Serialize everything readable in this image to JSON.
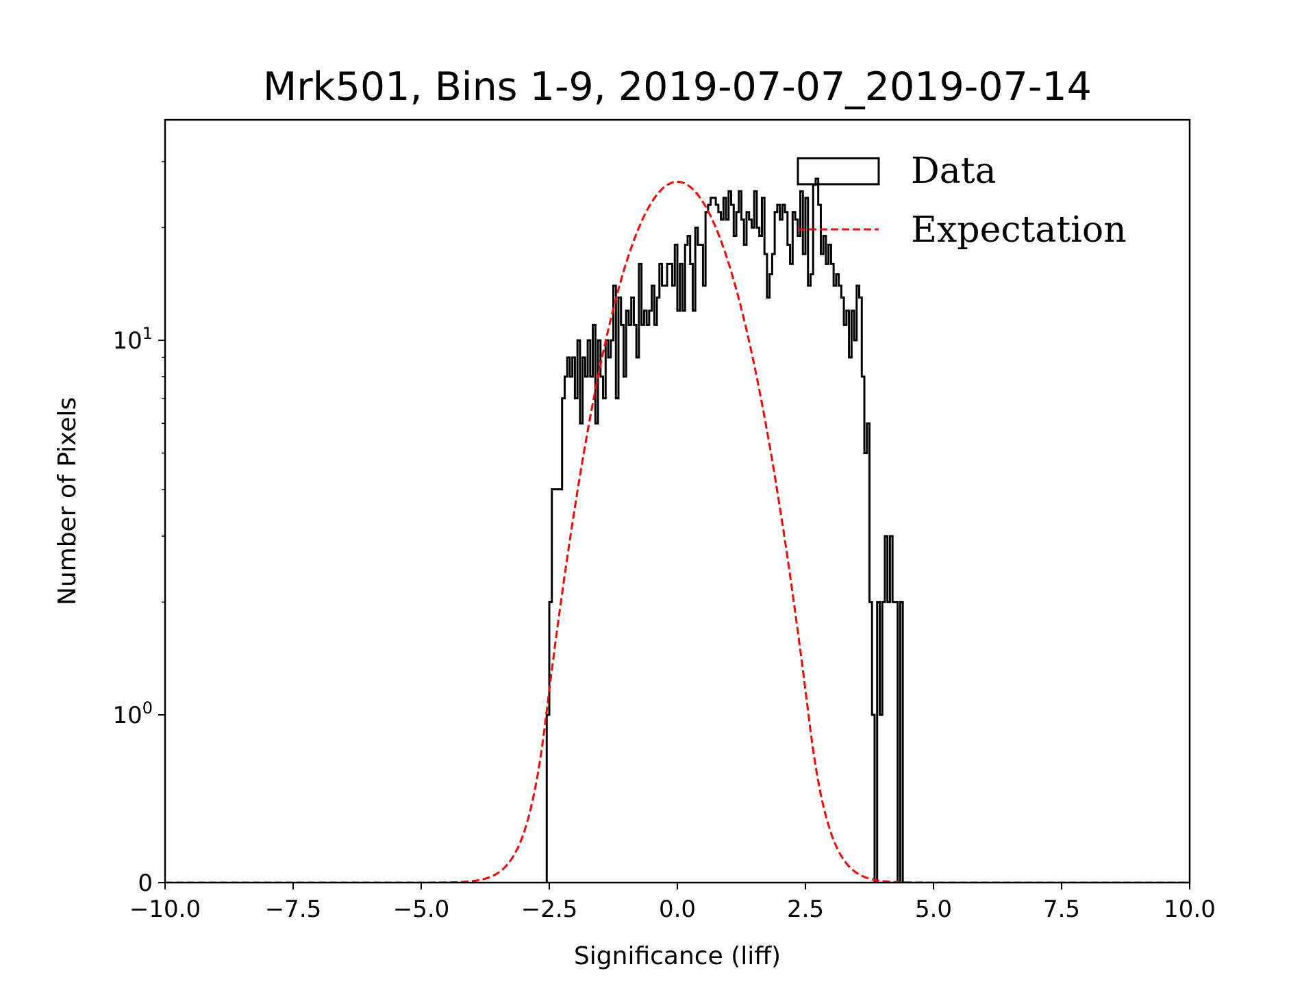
{
  "chart_data": {
    "type": "histogram",
    "title": "Mrk501, Bins 1-9, 2019-07-07_2019-07-14",
    "xlabel": "Significance (liff)",
    "ylabel": "Number of Pixels",
    "xlim": [
      -10.0,
      10.0
    ],
    "ylim": [
      0,
      38
    ],
    "yscale": "symlog",
    "grid": false,
    "x_ticks": [
      -10.0,
      -7.5,
      -5.0,
      -2.5,
      0.0,
      2.5,
      5.0,
      7.5,
      10.0
    ],
    "x_tick_labels": [
      "−10.0",
      "−7.5",
      "−5.0",
      "−2.5",
      "0.0",
      "2.5",
      "5.0",
      "7.5",
      "10.0"
    ],
    "y_ticks": [
      {
        "value": 0,
        "base": "0",
        "exp": ""
      },
      {
        "value": 1,
        "base": "10",
        "exp": "0"
      },
      {
        "value": 10,
        "base": "10",
        "exp": "1"
      }
    ],
    "legend": {
      "position": "top-right",
      "entries": [
        {
          "label": "Data",
          "style": "step-outline",
          "color": "#000000"
        },
        {
          "label": "Expectation",
          "style": "dashed-line",
          "color": "#ff0000"
        }
      ]
    },
    "series": [
      {
        "name": "Data",
        "kind": "step",
        "color": "#000000",
        "bin_width": 0.05,
        "bin_start": -2.55,
        "values": [
          1,
          2,
          4,
          4,
          4,
          4,
          7,
          8,
          9,
          8,
          9,
          7,
          10,
          6,
          9,
          8,
          10,
          8,
          11,
          6,
          10,
          8,
          7,
          10,
          9,
          10,
          14,
          7,
          13,
          11,
          8,
          12,
          11,
          13,
          11,
          9,
          16,
          11,
          12,
          11,
          12,
          14,
          11,
          13,
          16,
          14,
          14,
          16,
          16,
          14,
          18,
          12,
          16,
          12,
          18,
          19,
          16,
          12,
          20,
          18,
          18,
          14,
          22,
          23,
          24,
          24,
          23,
          22,
          21,
          24,
          21,
          25,
          23,
          19,
          22,
          25,
          21,
          18,
          22,
          21,
          20,
          25,
          20,
          19,
          24,
          17,
          13,
          15,
          17,
          22,
          23,
          21,
          23,
          22,
          18,
          16,
          22,
          21,
          19,
          25,
          17,
          24,
          14,
          15,
          26,
          27,
          23,
          17,
          19,
          16,
          18,
          16,
          14,
          15,
          14,
          13,
          11,
          12,
          9,
          12,
          10,
          14,
          13,
          8,
          5,
          6,
          2,
          1,
          0,
          2,
          1,
          2,
          3,
          2,
          3,
          2,
          2,
          0,
          2,
          0
        ],
        "note": "estimated per-bin pixel counts read from symlog axis"
      },
      {
        "name": "Expectation",
        "kind": "gaussian",
        "color": "#ff0000",
        "amplitude": 26.5,
        "mean": 0.0,
        "sigma": 1.0
      }
    ]
  }
}
